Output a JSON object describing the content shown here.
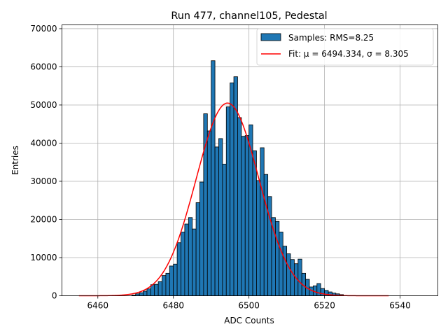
{
  "chart_data": {
    "type": "bar",
    "title": "Run 477, channel105, Pedestal",
    "xlabel": "ADC Counts",
    "ylabel": "Entries",
    "xlim": [
      6450.5,
      6550
    ],
    "ylim": [
      0,
      71000
    ],
    "grid": true,
    "legend_position": "top-right",
    "xticks": [
      6460,
      6480,
      6500,
      6520,
      6540
    ],
    "yticks": [
      0,
      10000,
      20000,
      30000,
      40000,
      50000,
      60000,
      70000
    ],
    "bin_width": 1,
    "bin_edges_start": 6469,
    "bar_color": "#1f77b4",
    "fit_color": "#ff0000",
    "series": [
      {
        "name": "Samples: RMS=8.25",
        "kind": "histogram",
        "values": [
          200,
          500,
          800,
          1200,
          1800,
          2900,
          3000,
          3700,
          5300,
          5900,
          7800,
          8300,
          13900,
          16700,
          18800,
          20500,
          17500,
          24400,
          29800,
          47700,
          43200,
          61600,
          39000,
          41200,
          34500,
          49500,
          55800,
          57400,
          46700,
          41800,
          42000,
          44800,
          38000,
          30200,
          38800,
          31800,
          26000,
          20500,
          19500,
          16700,
          13000,
          11000,
          9500,
          8400,
          9600,
          5900,
          4300,
          2300,
          2600,
          3200,
          1900,
          1400,
          1000,
          700,
          500,
          300
        ]
      },
      {
        "name": "Fit: μ = 6494.334, σ = 8.305",
        "kind": "gaussian_fit",
        "mu": 6494.334,
        "sigma": 8.305,
        "amplitude": 50500,
        "x_range": [
          6455,
          6537
        ]
      }
    ]
  }
}
